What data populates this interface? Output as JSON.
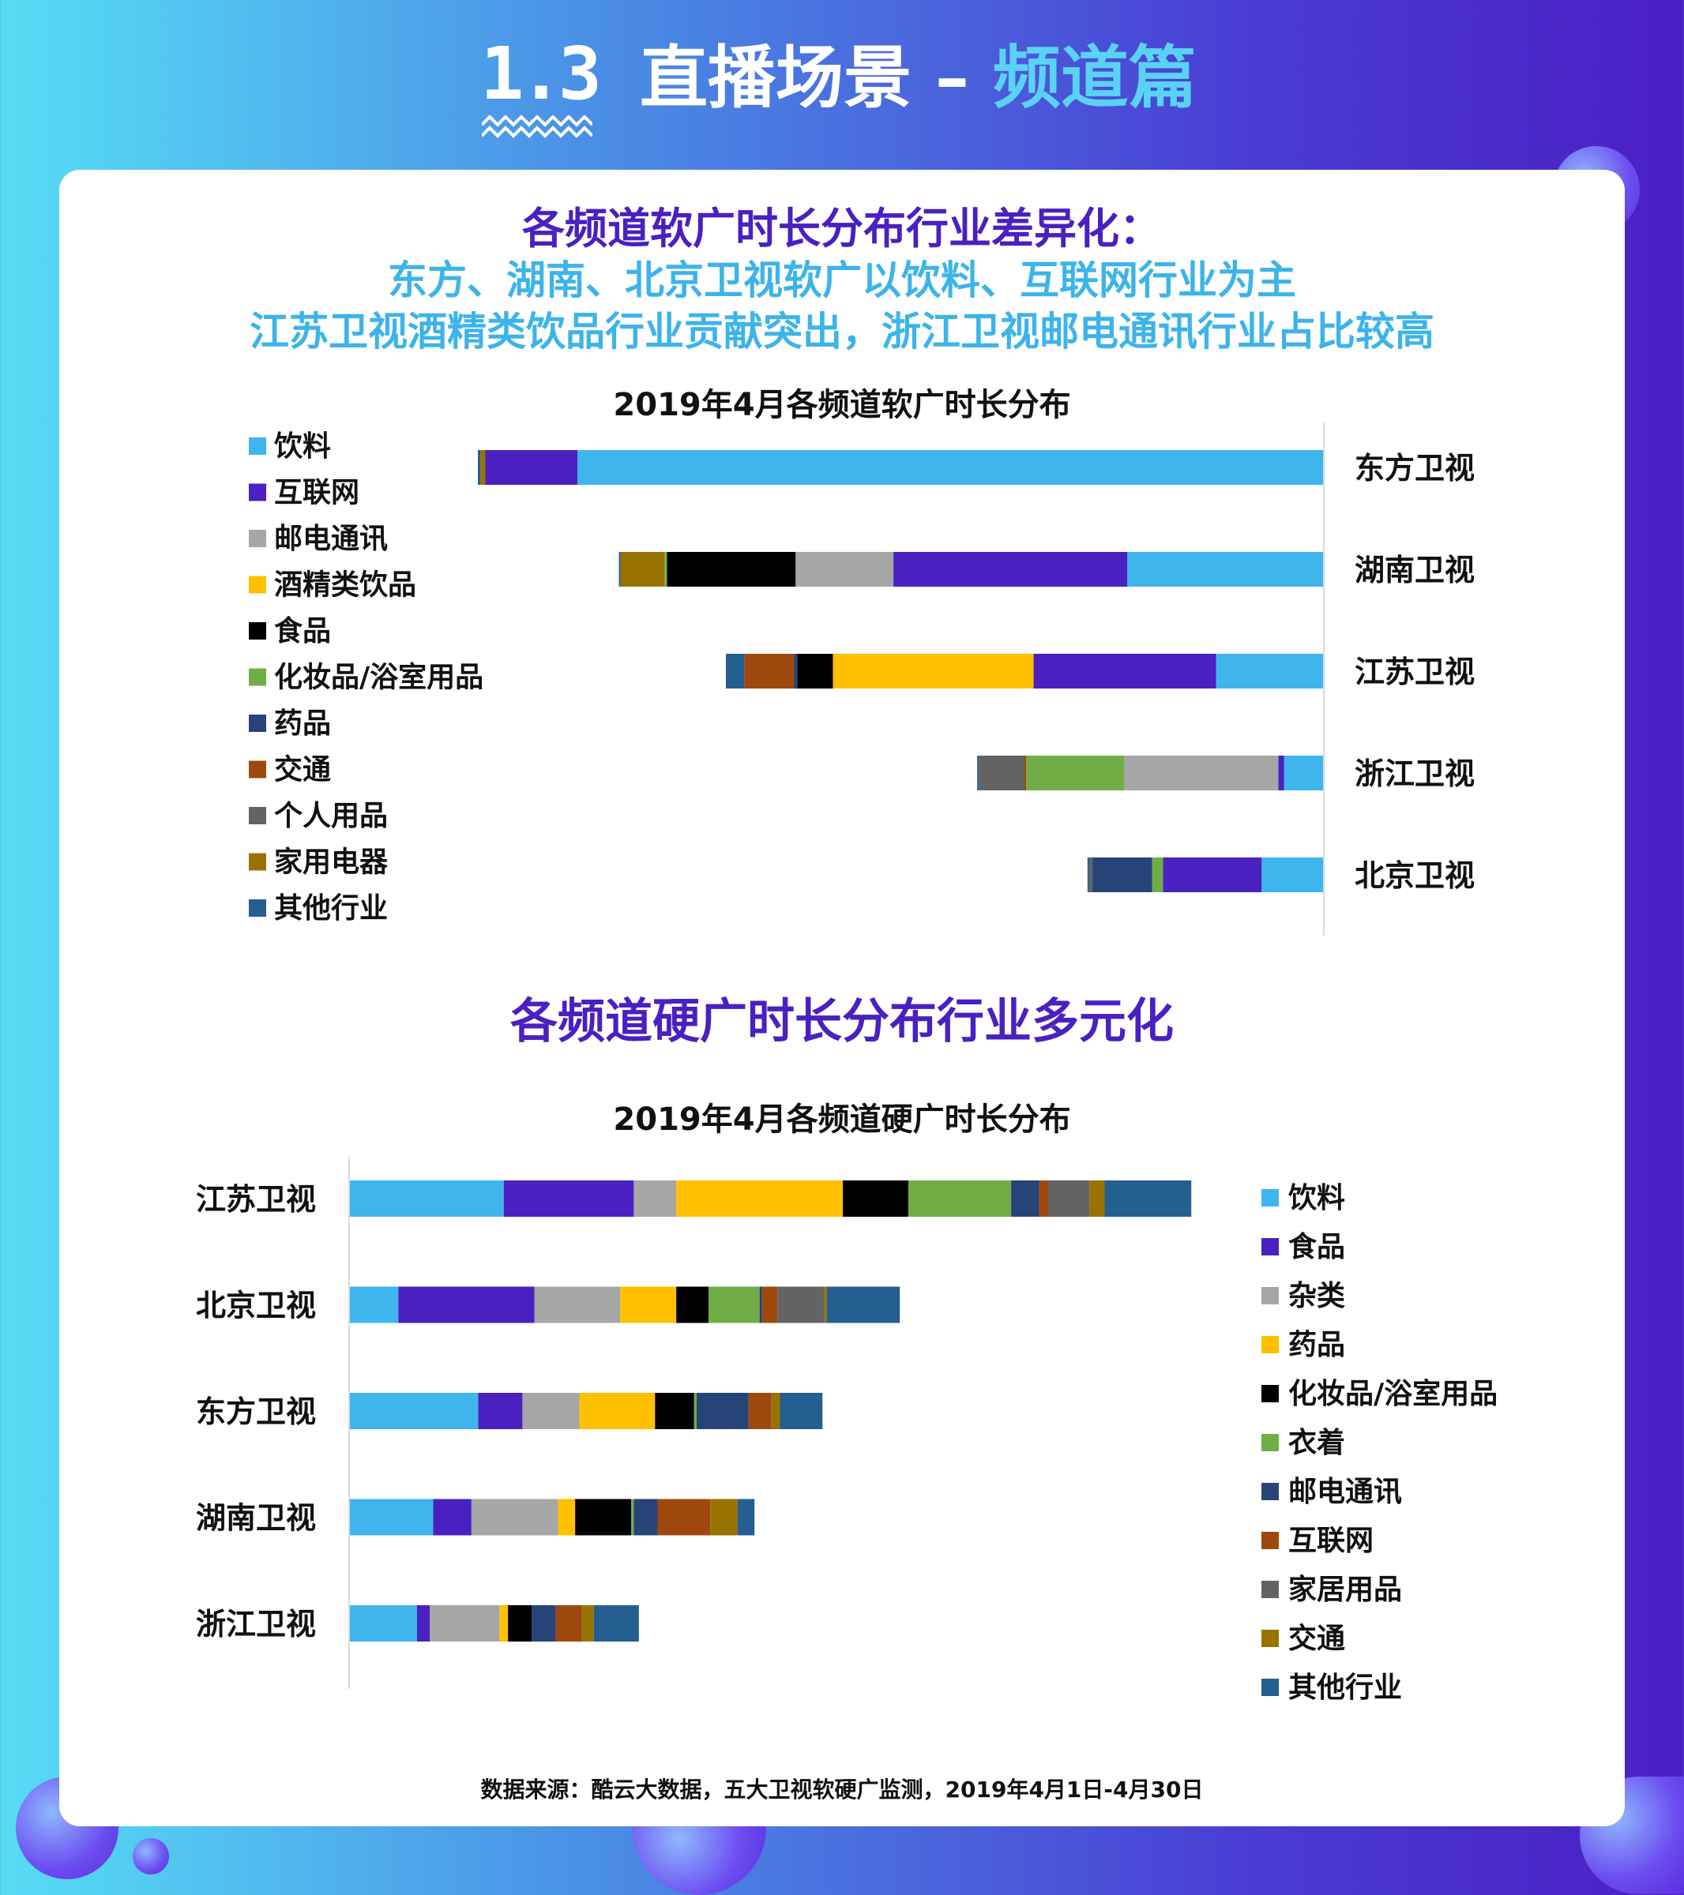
{
  "header": {
    "section_number": "1.3",
    "title_main": "直播场景 – ",
    "title_accent": "频道篇"
  },
  "headline_soft": {
    "line1": "各频道软广时长分布行业差异化：",
    "line2": "东方、湖南、北京卫视软广以饮料、互联网行业为主",
    "line3": "江苏卫视酒精类饮品行业贡献突出，浙江卫视邮电通讯行业占比较高"
  },
  "headline_hard": "各频道硬广时长分布行业多元化",
  "source": "数据来源：酷云大数据，五大卫视软硬广监测，2019年4月1日-4月30日",
  "colors": {
    "light_blue": "#3fb5ee",
    "purple": "#4a20c0",
    "gray": "#a6a6a6",
    "gold": "#ffc000",
    "black": "#000000",
    "green": "#70ad47",
    "navy": "#264478",
    "rust": "#9e480e",
    "dark_gray": "#636363",
    "olive": "#997300",
    "steel_blue": "#255e91"
  },
  "chart_data": [
    {
      "type": "bar",
      "orientation": "horizontal-stacked",
      "title": "2019年4月各频道软广时长分布",
      "categories": [
        "东方卫视",
        "湖南卫视",
        "江苏卫视",
        "浙江卫视",
        "北京卫视"
      ],
      "category_axis_side": "right",
      "bar_direction": "right-to-left",
      "legend_position": "left",
      "xlim": [
        0,
        100
      ],
      "series": [
        {
          "name": "饮料",
          "color": "#3fb5ee",
          "values": [
            89.9,
            23.6,
            12.9,
            4.7,
            7.4
          ]
        },
        {
          "name": "互联网",
          "color": "#4a20c0",
          "values": [
            11.1,
            28.2,
            22.0,
            0.7,
            11.9
          ]
        },
        {
          "name": "邮电通讯",
          "color": "#a6a6a6",
          "values": [
            0,
            11.8,
            0,
            18.6,
            0
          ]
        },
        {
          "name": "酒精类饮品",
          "color": "#ffc000",
          "values": [
            0,
            0,
            24.2,
            0,
            0
          ]
        },
        {
          "name": "食品",
          "color": "#000000",
          "values": [
            0,
            15.5,
            4.3,
            0,
            0
          ]
        },
        {
          "name": "化妆品/浴室用品",
          "color": "#70ad47",
          "values": [
            0,
            0.3,
            0,
            11.8,
            1.3
          ]
        },
        {
          "name": "药品",
          "color": "#264478",
          "values": [
            0,
            0,
            0.4,
            0,
            7.2
          ]
        },
        {
          "name": "交通",
          "color": "#9e480e",
          "values": [
            0,
            0,
            6.0,
            0.2,
            0
          ]
        },
        {
          "name": "个人用品",
          "color": "#636363",
          "values": [
            0,
            0,
            0,
            5.5,
            0.4
          ]
        },
        {
          "name": "家用电器",
          "color": "#997300",
          "values": [
            0.6,
            5.3,
            0,
            0,
            0
          ]
        },
        {
          "name": "其他行业",
          "color": "#255e91",
          "values": [
            0.3,
            0.2,
            2.2,
            0.2,
            0.2
          ]
        }
      ]
    },
    {
      "type": "bar",
      "orientation": "horizontal-stacked",
      "title": "2019年4月各频道硬广时长分布",
      "categories": [
        "江苏卫视",
        "北京卫视",
        "东方卫视",
        "湖南卫视",
        "浙江卫视"
      ],
      "category_axis_side": "left",
      "bar_direction": "left-to-right",
      "legend_position": "right",
      "xlim": [
        0,
        100
      ],
      "series": [
        {
          "name": "饮料",
          "color": "#3fb5ee",
          "values": [
            18.1,
            5.7,
            15.1,
            9.8,
            7.9
          ]
        },
        {
          "name": "食品",
          "color": "#4a20c0",
          "values": [
            15.3,
            16.0,
            5.2,
            4.5,
            1.5
          ]
        },
        {
          "name": "杂类",
          "color": "#a6a6a6",
          "values": [
            5.0,
            10.1,
            6.7,
            10.2,
            8.2
          ]
        },
        {
          "name": "药品",
          "color": "#ffc000",
          "values": [
            19.6,
            6.6,
            8.9,
            2.0,
            1.0
          ]
        },
        {
          "name": "化妆品/浴室用品",
          "color": "#000000",
          "values": [
            7.7,
            3.8,
            4.6,
            6.6,
            2.8
          ]
        },
        {
          "name": "衣着",
          "color": "#70ad47",
          "values": [
            12.1,
            6.0,
            0.3,
            0.3,
            0
          ]
        },
        {
          "name": "邮电通讯",
          "color": "#264478",
          "values": [
            3.3,
            0.3,
            6.1,
            2.8,
            2.8
          ]
        },
        {
          "name": "互联网",
          "color": "#9e480e",
          "values": [
            1.1,
            1.8,
            2.7,
            6.2,
            3.1
          ]
        },
        {
          "name": "家居用品",
          "color": "#636363",
          "values": [
            4.8,
            5.5,
            0,
            0,
            0
          ]
        },
        {
          "name": "交通",
          "color": "#997300",
          "values": [
            1.8,
            0.3,
            1.0,
            3.2,
            1.4
          ]
        },
        {
          "name": "其他行业",
          "color": "#255e91",
          "values": [
            10.2,
            8.6,
            5.0,
            2.0,
            5.3
          ]
        }
      ]
    }
  ]
}
